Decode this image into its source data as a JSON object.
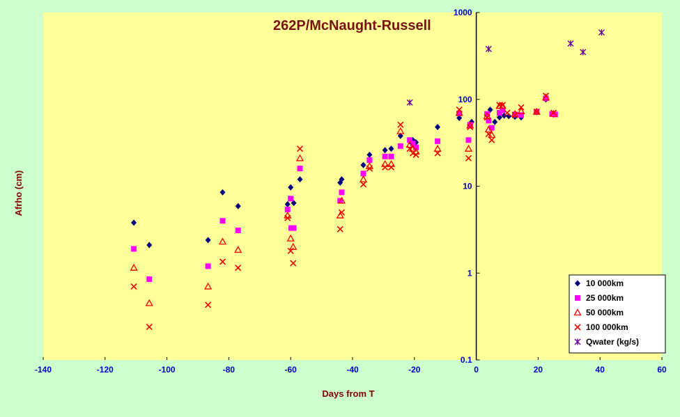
{
  "chart_data": {
    "type": "scatter",
    "title": "262P/McNaught-Russell",
    "xlabel": "Days from  T",
    "ylabel": "Afrho (cm)",
    "xlim": [
      -140,
      60
    ],
    "ylim": [
      0.1,
      1000
    ],
    "yscale": "log",
    "x_ticks": [
      "-140",
      "-120",
      "-100",
      "-80",
      "-60",
      "-40",
      "-20",
      "0",
      "20",
      "40",
      "60"
    ],
    "y_ticks": [
      "0.1",
      "1",
      "10",
      "100",
      "1000"
    ],
    "grid": false,
    "vertical_reference_line_at_x": 0,
    "legend_position": "bottom-right",
    "colors": {
      "plot_background": "#ffff99",
      "page_background": "#ccffcc",
      "axis_text": "#0000cc",
      "axis_title": "#800000",
      "title": "#7b1010"
    },
    "series": [
      {
        "name": "10 000km",
        "marker": "diamond",
        "color": "#00007f",
        "points": [
          [
            -110.7,
            3.8
          ],
          [
            -105.7,
            2.1
          ],
          [
            -86.7,
            2.4
          ],
          [
            -82.0,
            8.5
          ],
          [
            -77.0,
            5.9
          ],
          [
            -61.0,
            6.2
          ],
          [
            -60.0,
            9.7
          ],
          [
            -59.0,
            6.4
          ],
          [
            -57.0,
            12.0
          ],
          [
            -44.0,
            11.0
          ],
          [
            -43.5,
            12.0
          ],
          [
            -36.5,
            17.5
          ],
          [
            -34.5,
            23.0
          ],
          [
            -29.5,
            26.0
          ],
          [
            -27.5,
            27.0
          ],
          [
            -24.5,
            38.0
          ],
          [
            -21.5,
            33.0
          ],
          [
            -20.5,
            34.0
          ],
          [
            -19.5,
            32.0
          ],
          [
            -12.5,
            48.0
          ],
          [
            -5.5,
            61.0
          ],
          [
            -2.0,
            52.0
          ],
          [
            -1.5,
            55.0
          ],
          [
            3.5,
            67.0
          ],
          [
            4.5,
            76.0
          ],
          [
            6.0,
            55.0
          ],
          [
            7.5,
            62.0
          ],
          [
            9.0,
            65.0
          ],
          [
            10.5,
            64.0
          ],
          [
            12.5,
            63.0
          ],
          [
            14.5,
            62.0
          ],
          [
            19.5,
            71.0
          ],
          [
            22.5,
            100.0
          ],
          [
            25.0,
            67.0
          ]
        ]
      },
      {
        "name": "25 000km",
        "marker": "square",
        "color": "#ff00ff",
        "points": [
          [
            -110.7,
            1.9
          ],
          [
            -105.7,
            0.85
          ],
          [
            -86.7,
            1.2
          ],
          [
            -82.0,
            4.0
          ],
          [
            -77.0,
            3.1
          ],
          [
            -61.0,
            5.4
          ],
          [
            -60.0,
            7.2
          ],
          [
            -59.8,
            3.3
          ],
          [
            -59.0,
            3.3
          ],
          [
            -57.0,
            16.0
          ],
          [
            -44.0,
            6.8
          ],
          [
            -43.5,
            8.5
          ],
          [
            -36.5,
            14.0
          ],
          [
            -34.5,
            20.0
          ],
          [
            -29.5,
            22.0
          ],
          [
            -27.5,
            22.0
          ],
          [
            -24.5,
            29.0
          ],
          [
            -21.5,
            34.0
          ],
          [
            -20.5,
            31.0
          ],
          [
            -19.5,
            28.0
          ],
          [
            -12.5,
            33.0
          ],
          [
            -5.5,
            69.0
          ],
          [
            -2.5,
            34.0
          ],
          [
            -2.0,
            51.0
          ],
          [
            3.5,
            68.0
          ],
          [
            4.0,
            57.0
          ],
          [
            5.0,
            47.0
          ],
          [
            7.5,
            70.0
          ],
          [
            8.5,
            75.0
          ],
          [
            12.5,
            67.0
          ],
          [
            14.5,
            66.0
          ],
          [
            19.5,
            72.0
          ],
          [
            22.5,
            103.0
          ],
          [
            24.5,
            68.0
          ],
          [
            25.5,
            67.0
          ]
        ]
      },
      {
        "name": "50 000km",
        "marker": "triangle",
        "color": "#ff0000",
        "points": [
          [
            -110.7,
            1.15
          ],
          [
            -105.7,
            0.45
          ],
          [
            -86.7,
            0.7
          ],
          [
            -82.0,
            2.3
          ],
          [
            -77.0,
            1.85
          ],
          [
            -61.0,
            4.6
          ],
          [
            -60.0,
            2.5
          ],
          [
            -59.2,
            2.0
          ],
          [
            -57.0,
            21.0
          ],
          [
            -44.0,
            4.6
          ],
          [
            -43.5,
            6.8
          ],
          [
            -36.5,
            12.0
          ],
          [
            -34.5,
            17.0
          ],
          [
            -29.5,
            18.0
          ],
          [
            -27.5,
            18.0
          ],
          [
            -24.5,
            43.0
          ],
          [
            -21.5,
            30.0
          ],
          [
            -20.5,
            27.0
          ],
          [
            -19.5,
            25.0
          ],
          [
            -12.5,
            27.0
          ],
          [
            -5.5,
            70.0
          ],
          [
            -2.5,
            27.0
          ],
          [
            -2.0,
            50.0
          ],
          [
            3.5,
            64.0
          ],
          [
            4.0,
            45.0
          ],
          [
            5.0,
            39.0
          ],
          [
            7.5,
            84.0
          ],
          [
            8.5,
            84.0
          ],
          [
            12.5,
            68.0
          ],
          [
            14.5,
            73.0
          ],
          [
            19.5,
            72.0
          ],
          [
            22.5,
            105.0
          ],
          [
            25.0,
            68.0
          ]
        ]
      },
      {
        "name": "100 000km",
        "marker": "x",
        "color": "#ee0000",
        "points": [
          [
            -110.7,
            0.7
          ],
          [
            -105.7,
            0.24
          ],
          [
            -86.7,
            0.43
          ],
          [
            -82.0,
            1.35
          ],
          [
            -77.0,
            1.15
          ],
          [
            -61.0,
            4.3
          ],
          [
            -60.0,
            1.8
          ],
          [
            -59.2,
            1.3
          ],
          [
            -57.0,
            27.0
          ],
          [
            -44.0,
            3.2
          ],
          [
            -43.5,
            5.0
          ],
          [
            -36.5,
            10.5
          ],
          [
            -34.5,
            16.0
          ],
          [
            -29.5,
            16.5
          ],
          [
            -27.5,
            16.5
          ],
          [
            -24.5,
            51.0
          ],
          [
            -21.5,
            27.0
          ],
          [
            -20.5,
            24.0
          ],
          [
            -19.5,
            23.0
          ],
          [
            -12.5,
            24.0
          ],
          [
            -5.5,
            76.0
          ],
          [
            -2.5,
            21.0
          ],
          [
            -2.0,
            48.0
          ],
          [
            3.5,
            62.0
          ],
          [
            4.0,
            40.0
          ],
          [
            5.0,
            34.0
          ],
          [
            7.5,
            86.0
          ],
          [
            8.5,
            86.0
          ],
          [
            10.0,
            70.0
          ],
          [
            12.5,
            66.0
          ],
          [
            14.5,
            81.0
          ],
          [
            19.5,
            72.0
          ],
          [
            22.5,
            110.0
          ],
          [
            25.0,
            70.0
          ]
        ]
      },
      {
        "name": "Qwater (kg/s)",
        "marker": "asterisk",
        "color": "#660099",
        "points": [
          [
            -21.5,
            92.0
          ],
          [
            4.0,
            380.0
          ],
          [
            30.5,
            440.0
          ],
          [
            34.5,
            350.0
          ],
          [
            40.5,
            590.0
          ]
        ]
      }
    ]
  }
}
